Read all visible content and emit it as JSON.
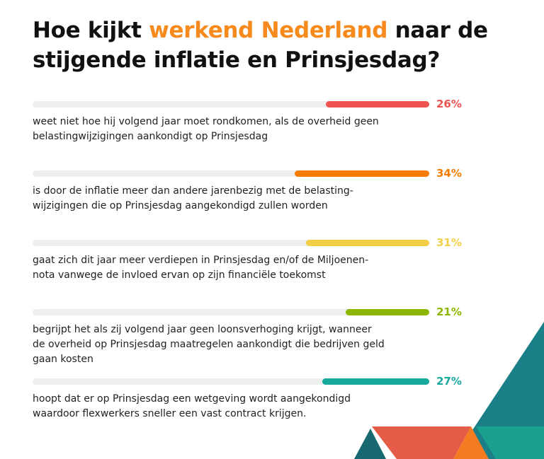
{
  "header": {
    "title_part1": "Hoe kijkt ",
    "title_highlight": "werkend Nederland",
    "title_part2": " naar de stijgende inflatie en Prinsjesdag?",
    "accent_color": "#f78a1d"
  },
  "chart_data": {
    "type": "bar",
    "orientation": "horizontal",
    "unit": "%",
    "xlim": [
      0,
      100
    ],
    "categories": [
      "weet niet hoe hij volgend jaar moet rondkomen, als de overheid geen\nbelastingwijzigingen aankondigt op Prinsjesdag",
      "is door de inflatie meer dan andere jarenbezig met de belasting-\nwijzigingen die op Prinsjesdag aangekondigd zullen worden",
      "gaat zich dit jaar meer verdiepen in Prinsjesdag en/of de Miljoenen-\nnota vanwege de invloed ervan op zijn financiële toekomst",
      "begrijpt het als zij volgend jaar geen loonsverhoging krijgt, wanneer\nde overheid op Prinsjesdag maatregelen aankondigt die bedrijven geld\ngaan kosten",
      "hoopt dat er op Prinsjesdag een wetgeving wordt aangekondigd\nwaardoor flexwerkers sneller een vast contract krijgen."
    ],
    "values": [
      26,
      34,
      31,
      21,
      27
    ],
    "value_labels": [
      "26%",
      "34%",
      "31%",
      "21%",
      "27%"
    ],
    "colors": [
      "#ef5350",
      "#f57c00",
      "#f3cf45",
      "#8db600",
      "#17a99e"
    ],
    "grid": false,
    "legend": "none"
  },
  "decoration": {
    "colors": [
      "#1a7f86",
      "#e45b48",
      "#f47c20",
      "#1aa08f"
    ]
  }
}
